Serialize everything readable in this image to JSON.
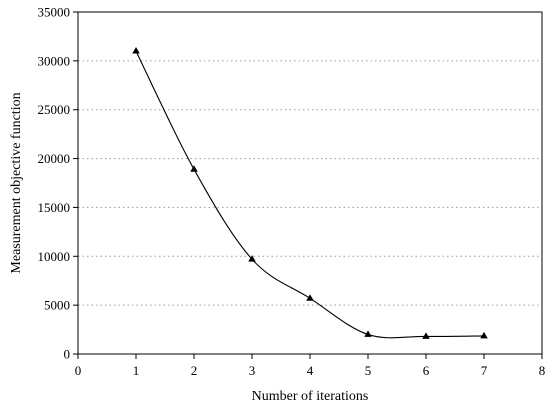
{
  "chart_data": {
    "type": "line",
    "title": "",
    "xlabel": "Number of iterations",
    "ylabel": "Measurement objective function",
    "xlim": [
      0,
      8
    ],
    "ylim": [
      0,
      35000
    ],
    "x_ticks": [
      "0",
      "1",
      "2",
      "3",
      "4",
      "5",
      "6",
      "7",
      "8"
    ],
    "y_ticks": [
      "0",
      "5000",
      "10000",
      "15000",
      "20000",
      "25000",
      "30000",
      "35000"
    ],
    "grid": "dotted horizontal at major y ticks",
    "legend": "none",
    "marker": "triangle",
    "line_style": "smooth",
    "color": "#000000",
    "series": [
      {
        "x": [
          1,
          2,
          3,
          4,
          5,
          6,
          7
        ],
        "values": [
          31000,
          18900,
          9700,
          5700,
          2000,
          1800,
          1850
        ]
      }
    ]
  }
}
